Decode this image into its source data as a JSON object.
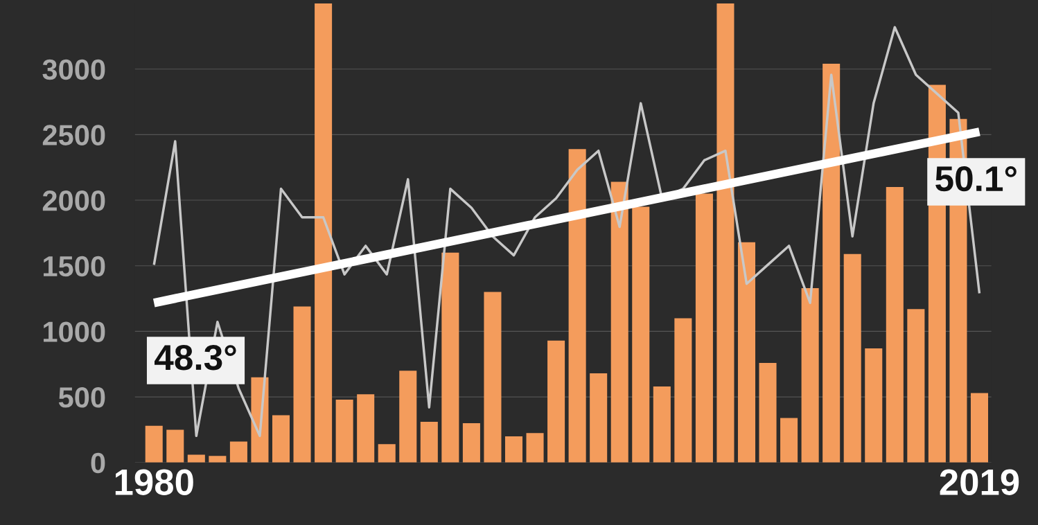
{
  "chart_data": {
    "type": "bar",
    "x": [
      1980,
      1981,
      1982,
      1983,
      1984,
      1985,
      1986,
      1987,
      1988,
      1989,
      1990,
      1991,
      1992,
      1993,
      1994,
      1995,
      1996,
      1997,
      1998,
      1999,
      2000,
      2001,
      2002,
      2003,
      2004,
      2005,
      2006,
      2007,
      2008,
      2009,
      2010,
      2011,
      2012,
      2013,
      2014,
      2015,
      2016,
      2017,
      2018,
      2019
    ],
    "series": [
      {
        "color": "#f49c5c",
        "values": [
          280,
          250,
          60,
          50,
          160,
          650,
          360,
          1190,
          3500,
          480,
          520,
          140,
          700,
          310,
          1600,
          300,
          1300,
          200,
          225,
          930,
          2390,
          680,
          2140,
          1950,
          580,
          1100,
          2050,
          3500,
          1680,
          760,
          340,
          1330,
          3040,
          1590,
          870,
          2100,
          1170,
          2880,
          2620,
          530
        ]
      },
      {
        "type": "line",
        "axis": "y2",
        "color": "#c8c8c8",
        "values": [
          48.7,
          50.0,
          46.9,
          48.1,
          47.4,
          46.9,
          49.5,
          49.2,
          49.2,
          48.6,
          48.9,
          48.6,
          49.6,
          47.2,
          49.5,
          49.3,
          49.0,
          48.8,
          49.2,
          49.4,
          49.7,
          49.9,
          49.1,
          50.4,
          49.4,
          49.5,
          49.8,
          49.9,
          48.5,
          48.7,
          48.9,
          48.3,
          50.7,
          49.0,
          50.4,
          51.2,
          50.7,
          50.5,
          50.3,
          48.4
        ]
      },
      {
        "type": "line",
        "axis": "y2",
        "color": "#ffffff",
        "x": [
          1980,
          2019
        ],
        "values": [
          48.3,
          50.1
        ],
        "value_labels": [
          "48.3°",
          "50.1°"
        ]
      }
    ],
    "xlim": [
      1979.1,
      2019.56
    ],
    "xticks": [
      1980,
      2019
    ],
    "ylim": [
      0,
      3500
    ],
    "yticks": [
      0,
      500,
      1000,
      1500,
      2000,
      2500,
      3000
    ],
    "y2lim": [
      46.62,
      51.45
    ],
    "tick_labels": "xy",
    "grid": "y",
    "legend": false
  }
}
